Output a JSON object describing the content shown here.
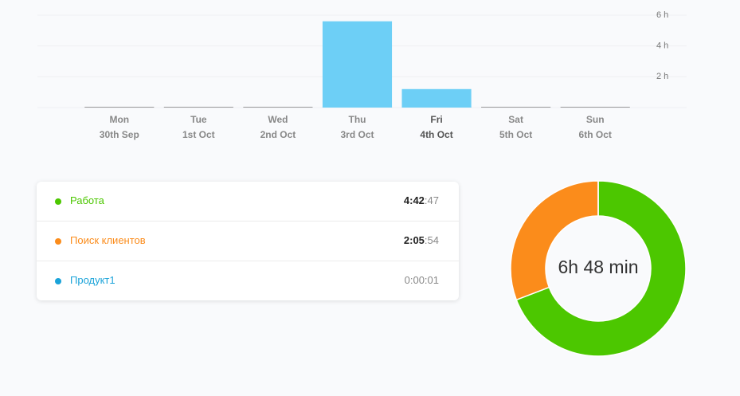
{
  "chart_data": [
    {
      "type": "bar",
      "categories": [
        "Mon",
        "Tue",
        "Wed",
        "Thu",
        "Fri",
        "Sat",
        "Sun"
      ],
      "dates": [
        "30th Sep",
        "1st Oct",
        "2nd Oct",
        "3rd Oct",
        "4th Oct",
        "5th Oct",
        "6th Oct"
      ],
      "values": [
        0,
        0,
        0,
        5.6,
        1.2,
        0,
        0
      ],
      "color": "#6dcff6",
      "ylim": [
        0,
        6
      ],
      "yticks": [
        {
          "value": 2,
          "label": "2 h"
        },
        {
          "value": 4,
          "label": "4 h"
        },
        {
          "value": 6,
          "label": "6 h"
        }
      ],
      "grid": true
    },
    {
      "type": "pie",
      "center_label": "6h 48 min",
      "categories": [
        "Работа",
        "Поиск клиентов",
        "Продукт1"
      ],
      "values": [
        282.78,
        125.9,
        0.02
      ],
      "colors": [
        "#4cc700",
        "#fb8c1b",
        "#1aa3d9"
      ]
    }
  ],
  "entries": [
    {
      "name": "Работа",
      "time_main": "4:42",
      "time_seconds": ":47"
    },
    {
      "name": "Поиск клиентов",
      "time_main": "2:05",
      "time_seconds": ":54"
    },
    {
      "name": "Продукт1",
      "time": "0:00:01"
    }
  ]
}
